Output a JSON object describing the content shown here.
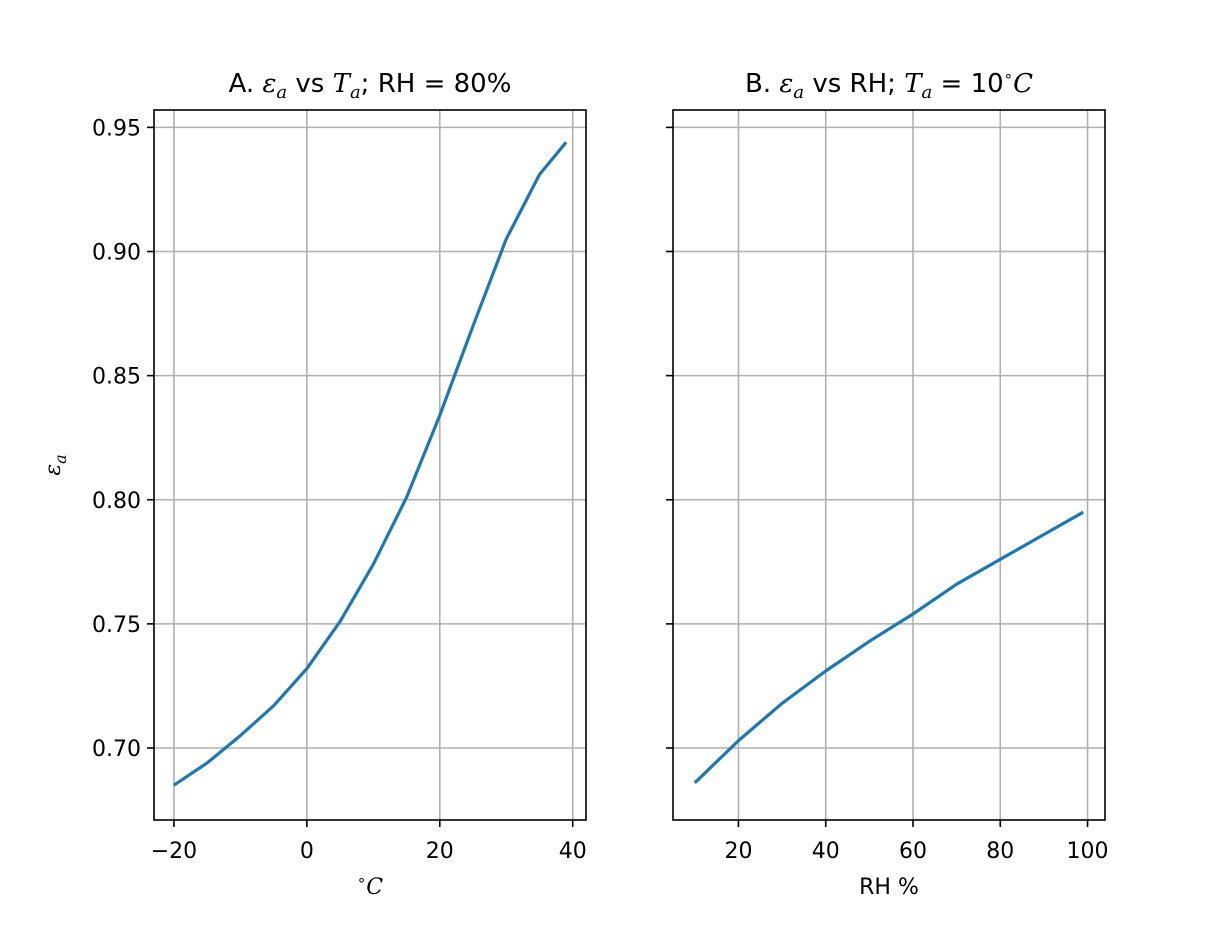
{
  "chart_data": [
    {
      "type": "line",
      "title": "A. εa vs Ta; RH = 80%",
      "title_parts": {
        "prefix": "A. ",
        "sym1": "ε",
        "sub1": "a",
        "mid": " vs ",
        "sym2": "T",
        "sub2": "a",
        "suffix": "; RH = 80%"
      },
      "xlabel": "°C",
      "xlabel_parts": {
        "degree": "∘",
        "unit": "C"
      },
      "ylabel": "εa",
      "ylabel_parts": {
        "sym": "ε",
        "sub": "a"
      },
      "xlim": [
        -23,
        42
      ],
      "ylim": [
        0.671,
        0.957
      ],
      "xticks": [
        -20,
        0,
        20,
        40
      ],
      "xtick_labels": [
        "−20",
        "0",
        "20",
        "40"
      ],
      "yticks": [
        0.7,
        0.75,
        0.8,
        0.85,
        0.9,
        0.95
      ],
      "ytick_labels": [
        "0.70",
        "0.75",
        "0.80",
        "0.85",
        "0.90",
        "0.95"
      ],
      "grid": true,
      "series": [
        {
          "color": "#1f77b4",
          "x": [
            -20,
            -15,
            -10,
            -5,
            0,
            5,
            10,
            15,
            20,
            25,
            30,
            35,
            39
          ],
          "y": [
            0.685,
            0.694,
            0.705,
            0.717,
            0.732,
            0.751,
            0.774,
            0.801,
            0.834,
            0.87,
            0.905,
            0.931,
            0.944
          ]
        }
      ]
    },
    {
      "type": "line",
      "title": "B. εa vs RH; Ta = 10°C",
      "title_parts": {
        "prefix": "B. ",
        "sym1": "ε",
        "sub1": "a",
        "mid": " vs RH; ",
        "sym2": "T",
        "sub2": "a",
        "eq": " = 10",
        "degree": "∘",
        "unit": "C"
      },
      "xlabel": "RH %",
      "xlim": [
        5,
        104
      ],
      "ylim": [
        0.671,
        0.957
      ],
      "xticks": [
        20,
        40,
        60,
        80,
        100
      ],
      "xtick_labels": [
        "20",
        "40",
        "60",
        "80",
        "100"
      ],
      "yticks": [
        0.7,
        0.75,
        0.8,
        0.85,
        0.9,
        0.95
      ],
      "grid": true,
      "series": [
        {
          "color": "#1f77b4",
          "x": [
            10,
            20,
            30,
            40,
            50,
            60,
            70,
            80,
            90,
            99
          ],
          "y": [
            0.686,
            0.703,
            0.718,
            0.731,
            0.743,
            0.754,
            0.766,
            0.776,
            0.786,
            0.795
          ]
        }
      ]
    }
  ]
}
